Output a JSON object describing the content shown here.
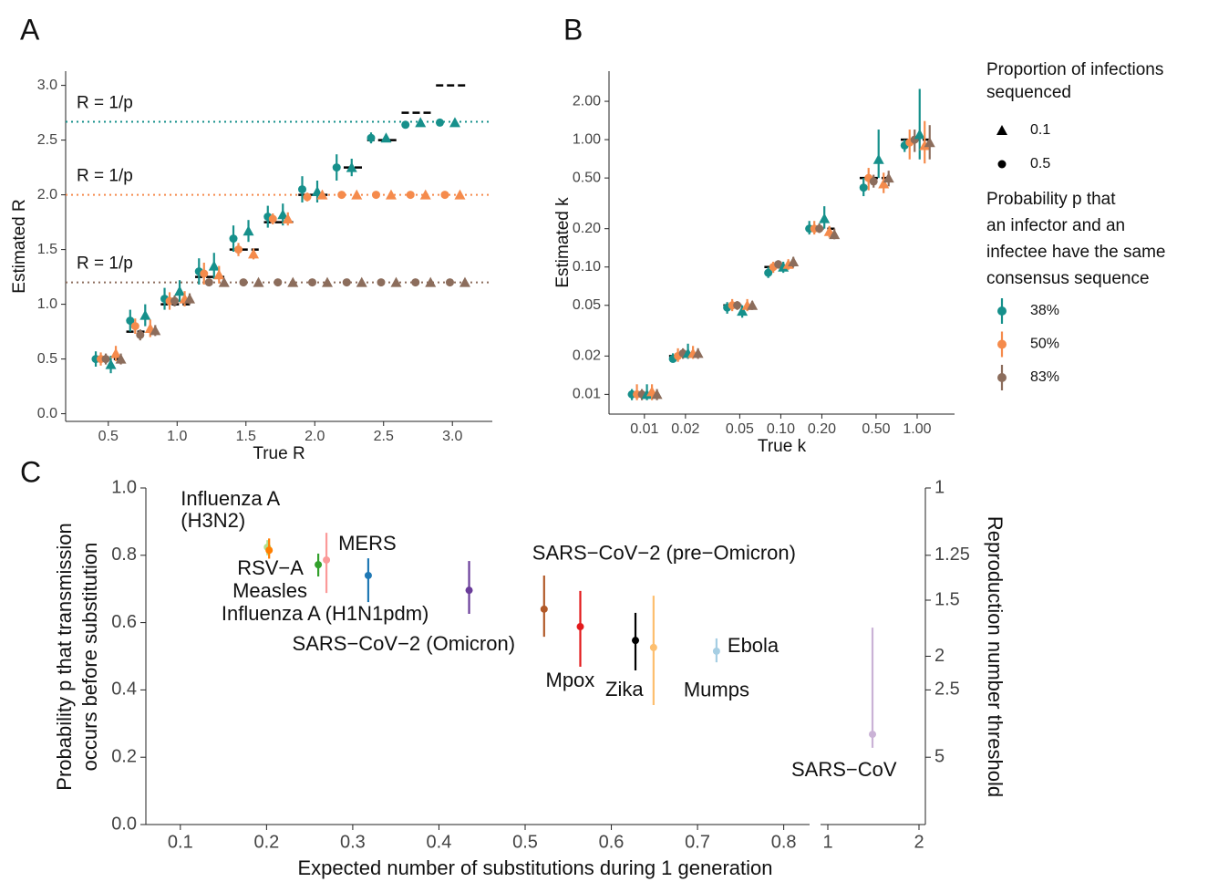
{
  "chart_data": [
    {
      "type": "scatter",
      "panel": "A",
      "x_label": "True R",
      "y_label": "Estimated R",
      "x": [
        0.5,
        0.75,
        1.0,
        1.25,
        1.5,
        1.75,
        2.0,
        2.25,
        2.5,
        2.75,
        3.0
      ],
      "xlim": [
        0.19,
        3.29
      ],
      "ylim": [
        -0.07,
        3.13
      ],
      "xticks": [
        0.5,
        {
          "value": 1.0,
          "label": "1.0"
        },
        1.5,
        {
          "value": 2.0,
          "label": "2.0"
        },
        2.5,
        {
          "value": 3.0,
          "label": "3.0"
        }
      ],
      "yticks": [
        {
          "value": 0.0,
          "label": "0.0"
        },
        0.5,
        {
          "value": 1.0,
          "label": "1.0"
        },
        1.5,
        {
          "value": 2.0,
          "label": "2.0"
        },
        2.5,
        {
          "value": 3.0,
          "label": "3.0"
        }
      ],
      "thresholds": [
        {
          "value": 2.667,
          "label": "R = 1/p",
          "color": "#16908b"
        },
        {
          "value": 2.0,
          "label": "R = 1/p",
          "color": "#f58b4c"
        },
        {
          "value": 1.2,
          "label": "R = 1/p",
          "color": "#8c6d5c"
        }
      ],
      "series": [
        {
          "color": "#16908b",
          "shape": "circle",
          "values": [
            0.5,
            0.85,
            1.05,
            1.3,
            1.6,
            1.8,
            2.05,
            2.25,
            2.52,
            2.64,
            2.66
          ],
          "lower": [
            0.43,
            0.75,
            0.95,
            1.18,
            1.48,
            1.7,
            1.93,
            2.13,
            2.47,
            2.61,
            2.64
          ],
          "upper": [
            0.57,
            0.95,
            1.15,
            1.42,
            1.72,
            1.9,
            2.17,
            2.37,
            2.57,
            2.67,
            2.68
          ]
        },
        {
          "color": "#f58b4c",
          "shape": "circle",
          "values": [
            0.5,
            0.8,
            1.03,
            1.28,
            1.5,
            1.78,
            1.98,
            2.0,
            2.0,
            2.0,
            2.0
          ],
          "lower": [
            0.44,
            0.73,
            0.95,
            1.18,
            1.44,
            1.73,
            1.94,
            1.98,
            1.98,
            1.98,
            1.98
          ],
          "upper": [
            0.56,
            0.87,
            1.11,
            1.38,
            1.56,
            1.83,
            2.02,
            2.02,
            2.02,
            2.02,
            2.02
          ]
        },
        {
          "color": "#8c6d5c",
          "shape": "circle",
          "values": [
            0.5,
            0.72,
            1.03,
            1.2,
            1.2,
            1.2,
            1.2,
            1.2,
            1.2,
            1.2,
            1.2
          ],
          "lower": [
            0.45,
            0.67,
            0.98,
            1.17,
            1.18,
            1.18,
            1.18,
            1.18,
            1.18,
            1.18,
            1.18
          ],
          "upper": [
            0.55,
            0.77,
            1.08,
            1.23,
            1.22,
            1.22,
            1.22,
            1.22,
            1.22,
            1.22,
            1.22
          ]
        },
        {
          "color": "#16908b",
          "shape": "triangle",
          "values": [
            0.45,
            0.9,
            1.12,
            1.35,
            1.67,
            1.82,
            2.03,
            2.25,
            2.52,
            2.66,
            2.66
          ],
          "lower": [
            0.37,
            0.8,
            1.02,
            1.23,
            1.57,
            1.72,
            1.93,
            2.17,
            2.49,
            2.64,
            2.64
          ],
          "upper": [
            0.53,
            1.0,
            1.22,
            1.47,
            1.77,
            1.92,
            2.13,
            2.33,
            2.55,
            2.68,
            2.68
          ]
        },
        {
          "color": "#f58b4c",
          "shape": "triangle",
          "values": [
            0.55,
            0.78,
            1.05,
            1.27,
            1.46,
            1.78,
            2.0,
            2.0,
            2.0,
            2.0,
            2.0
          ],
          "lower": [
            0.48,
            0.7,
            0.98,
            1.19,
            1.41,
            1.72,
            1.97,
            1.98,
            1.98,
            1.98,
            1.98
          ],
          "upper": [
            0.62,
            0.86,
            1.12,
            1.35,
            1.51,
            1.84,
            2.03,
            2.02,
            2.02,
            2.02,
            2.02
          ]
        },
        {
          "color": "#8c6d5c",
          "shape": "triangle",
          "values": [
            0.5,
            0.76,
            1.05,
            1.2,
            1.2,
            1.2,
            1.2,
            1.2,
            1.2,
            1.2,
            1.2
          ],
          "lower": [
            0.45,
            0.71,
            1.0,
            1.17,
            1.18,
            1.18,
            1.18,
            1.18,
            1.18,
            1.18,
            1.18
          ],
          "upper": [
            0.55,
            0.81,
            1.1,
            1.23,
            1.22,
            1.22,
            1.22,
            1.22,
            1.22,
            1.22,
            1.22
          ]
        }
      ],
      "legend": {
        "shape_title": [
          "Proportion of infections",
          "sequenced"
        ],
        "shapes": [
          {
            "label": "0.1",
            "shape": "triangle"
          },
          {
            "label": "0.5",
            "shape": "circle"
          }
        ],
        "color_title": [
          "Probability p that",
          "an infector and an",
          "infectee have the same",
          "consensus sequence"
        ],
        "colors": [
          {
            "label": "38%",
            "color": "#16908b"
          },
          {
            "label": "50%",
            "color": "#f58b4c"
          },
          {
            "label": "83%",
            "color": "#8c6d5c"
          }
        ]
      }
    },
    {
      "type": "scatter",
      "panel": "B",
      "x_label": "True k",
      "y_label": "Estimated k",
      "xscale": "log",
      "yscale": "log",
      "x": [
        0.01,
        0.02,
        0.05,
        0.1,
        0.2,
        0.5,
        1.0
      ],
      "xlim": [
        0.0055,
        1.88
      ],
      "ylim": [
        0.007,
        3.45
      ],
      "xticks": [
        0.01,
        0.02,
        0.05,
        {
          "value": 0.1,
          "label": "0.10"
        },
        {
          "value": 0.2,
          "label": "0.20"
        },
        {
          "value": 0.5,
          "label": "0.50"
        },
        {
          "value": 1.0,
          "label": "1.00"
        }
      ],
      "yticks": [
        0.01,
        0.02,
        0.05,
        {
          "value": 0.1,
          "label": "0.10"
        },
        {
          "value": 0.2,
          "label": "0.20"
        },
        {
          "value": 0.5,
          "label": "0.50"
        },
        {
          "value": 1.0,
          "label": "1.00"
        },
        {
          "value": 2.0,
          "label": "2.00"
        }
      ],
      "series": [
        {
          "color": "#16908b",
          "shape": "circle",
          "values": [
            0.01,
            0.019,
            0.048,
            0.09,
            0.2,
            0.42,
            0.9
          ],
          "lower": [
            0.009,
            0.018,
            0.043,
            0.082,
            0.18,
            0.36,
            0.8
          ],
          "upper": [
            0.011,
            0.021,
            0.053,
            0.1,
            0.23,
            0.5,
            1.0
          ]
        },
        {
          "color": "#f58b4c",
          "shape": "circle",
          "values": [
            0.01,
            0.02,
            0.05,
            0.1,
            0.2,
            0.5,
            0.95
          ],
          "lower": [
            0.009,
            0.018,
            0.045,
            0.09,
            0.18,
            0.4,
            0.7
          ],
          "upper": [
            0.012,
            0.023,
            0.056,
            0.11,
            0.23,
            0.6,
            1.2
          ]
        },
        {
          "color": "#8c6d5c",
          "shape": "circle",
          "values": [
            0.01,
            0.021,
            0.05,
            0.105,
            0.2,
            0.47,
            1.0
          ],
          "lower": [
            0.009,
            0.019,
            0.046,
            0.097,
            0.185,
            0.42,
            0.8
          ],
          "upper": [
            0.011,
            0.023,
            0.054,
            0.113,
            0.22,
            0.53,
            1.2
          ]
        },
        {
          "color": "#16908b",
          "shape": "triangle",
          "values": [
            0.01,
            0.021,
            0.045,
            0.1,
            0.24,
            0.7,
            1.1
          ],
          "lower": [
            0.009,
            0.019,
            0.04,
            0.09,
            0.2,
            0.5,
            0.7
          ],
          "upper": [
            0.012,
            0.025,
            0.05,
            0.11,
            0.3,
            1.2,
            2.5
          ]
        },
        {
          "color": "#f58b4c",
          "shape": "triangle",
          "values": [
            0.0105,
            0.021,
            0.05,
            0.105,
            0.19,
            0.45,
            0.9
          ],
          "lower": [
            0.009,
            0.019,
            0.045,
            0.095,
            0.17,
            0.38,
            0.65
          ],
          "upper": [
            0.012,
            0.024,
            0.056,
            0.115,
            0.21,
            0.55,
            1.4
          ]
        },
        {
          "color": "#8c6d5c",
          "shape": "triangle",
          "values": [
            0.01,
            0.021,
            0.05,
            0.11,
            0.18,
            0.5,
            0.95
          ],
          "lower": [
            0.009,
            0.019,
            0.046,
            0.1,
            0.165,
            0.43,
            0.7
          ],
          "upper": [
            0.011,
            0.023,
            0.054,
            0.12,
            0.2,
            0.57,
            1.3
          ]
        }
      ]
    },
    {
      "type": "pointrange",
      "panel": "C",
      "x_label": "Expected number of substitutions during 1 generation",
      "y_label": [
        "Probability p that transmission",
        "occurs before substitution"
      ],
      "y2_label": "Reproduction number threshold",
      "xlim": [
        [
          0.06,
          0.83
        ],
        [
          0.92,
          2.07
        ]
      ],
      "ylim": [
        0,
        1
      ],
      "y2scale": "reciprocal",
      "xticks": [
        0.1,
        0.2,
        0.3,
        0.4,
        0.5,
        0.6,
        0.7,
        0.8,
        1,
        2
      ],
      "yticks": [
        {
          "value": 0.0,
          "label": "0.0"
        },
        0.2,
        0.4,
        0.6,
        0.8,
        {
          "value": 1.0,
          "label": "1.0"
        }
      ],
      "y2ticks": [
        1,
        1.25,
        1.5,
        2,
        2.5,
        5
      ],
      "labels": [
        [
          "Influenza A",
          "(H3N2)"
        ],
        [
          "RSV−A"
        ],
        [
          "Measles"
        ],
        [
          "MERS"
        ],
        [
          "Influenza A (H1N1pdm)"
        ],
        [
          "SARS−CoV−2 (Omicron)"
        ],
        [
          "SARS−CoV−2 (pre−Omicron)"
        ],
        [
          "Mpox"
        ],
        [
          "Zika"
        ],
        [
          "Mumps"
        ],
        [
          "Ebola"
        ],
        [
          "SARS−CoV"
        ]
      ],
      "colors": [
        "#b2df8a",
        "#ff7f00",
        "#33a02c",
        "#fb9a99",
        "#1f78b4",
        "#6a3d9a",
        "#b15928",
        "#e31a1c",
        "#000000",
        "#fdbf6f",
        "#a6cee3",
        "#cab2d6"
      ],
      "x": [
        0.201,
        0.203,
        0.26,
        0.2695,
        0.318,
        0.435,
        0.522,
        0.564,
        0.628,
        0.649,
        0.722,
        1.49
      ],
      "values": [
        0.824,
        0.815,
        0.772,
        0.786,
        0.74,
        0.696,
        0.64,
        0.588,
        0.547,
        0.526,
        0.515,
        0.268
      ],
      "lower": [
        0.8,
        0.79,
        0.737,
        0.688,
        0.661,
        0.626,
        0.558,
        0.469,
        0.458,
        0.355,
        0.482,
        0.228
      ],
      "upper": [
        0.845,
        0.85,
        0.805,
        0.867,
        0.791,
        0.783,
        0.74,
        0.694,
        0.629,
        0.68,
        0.553,
        0.585
      ]
    }
  ]
}
